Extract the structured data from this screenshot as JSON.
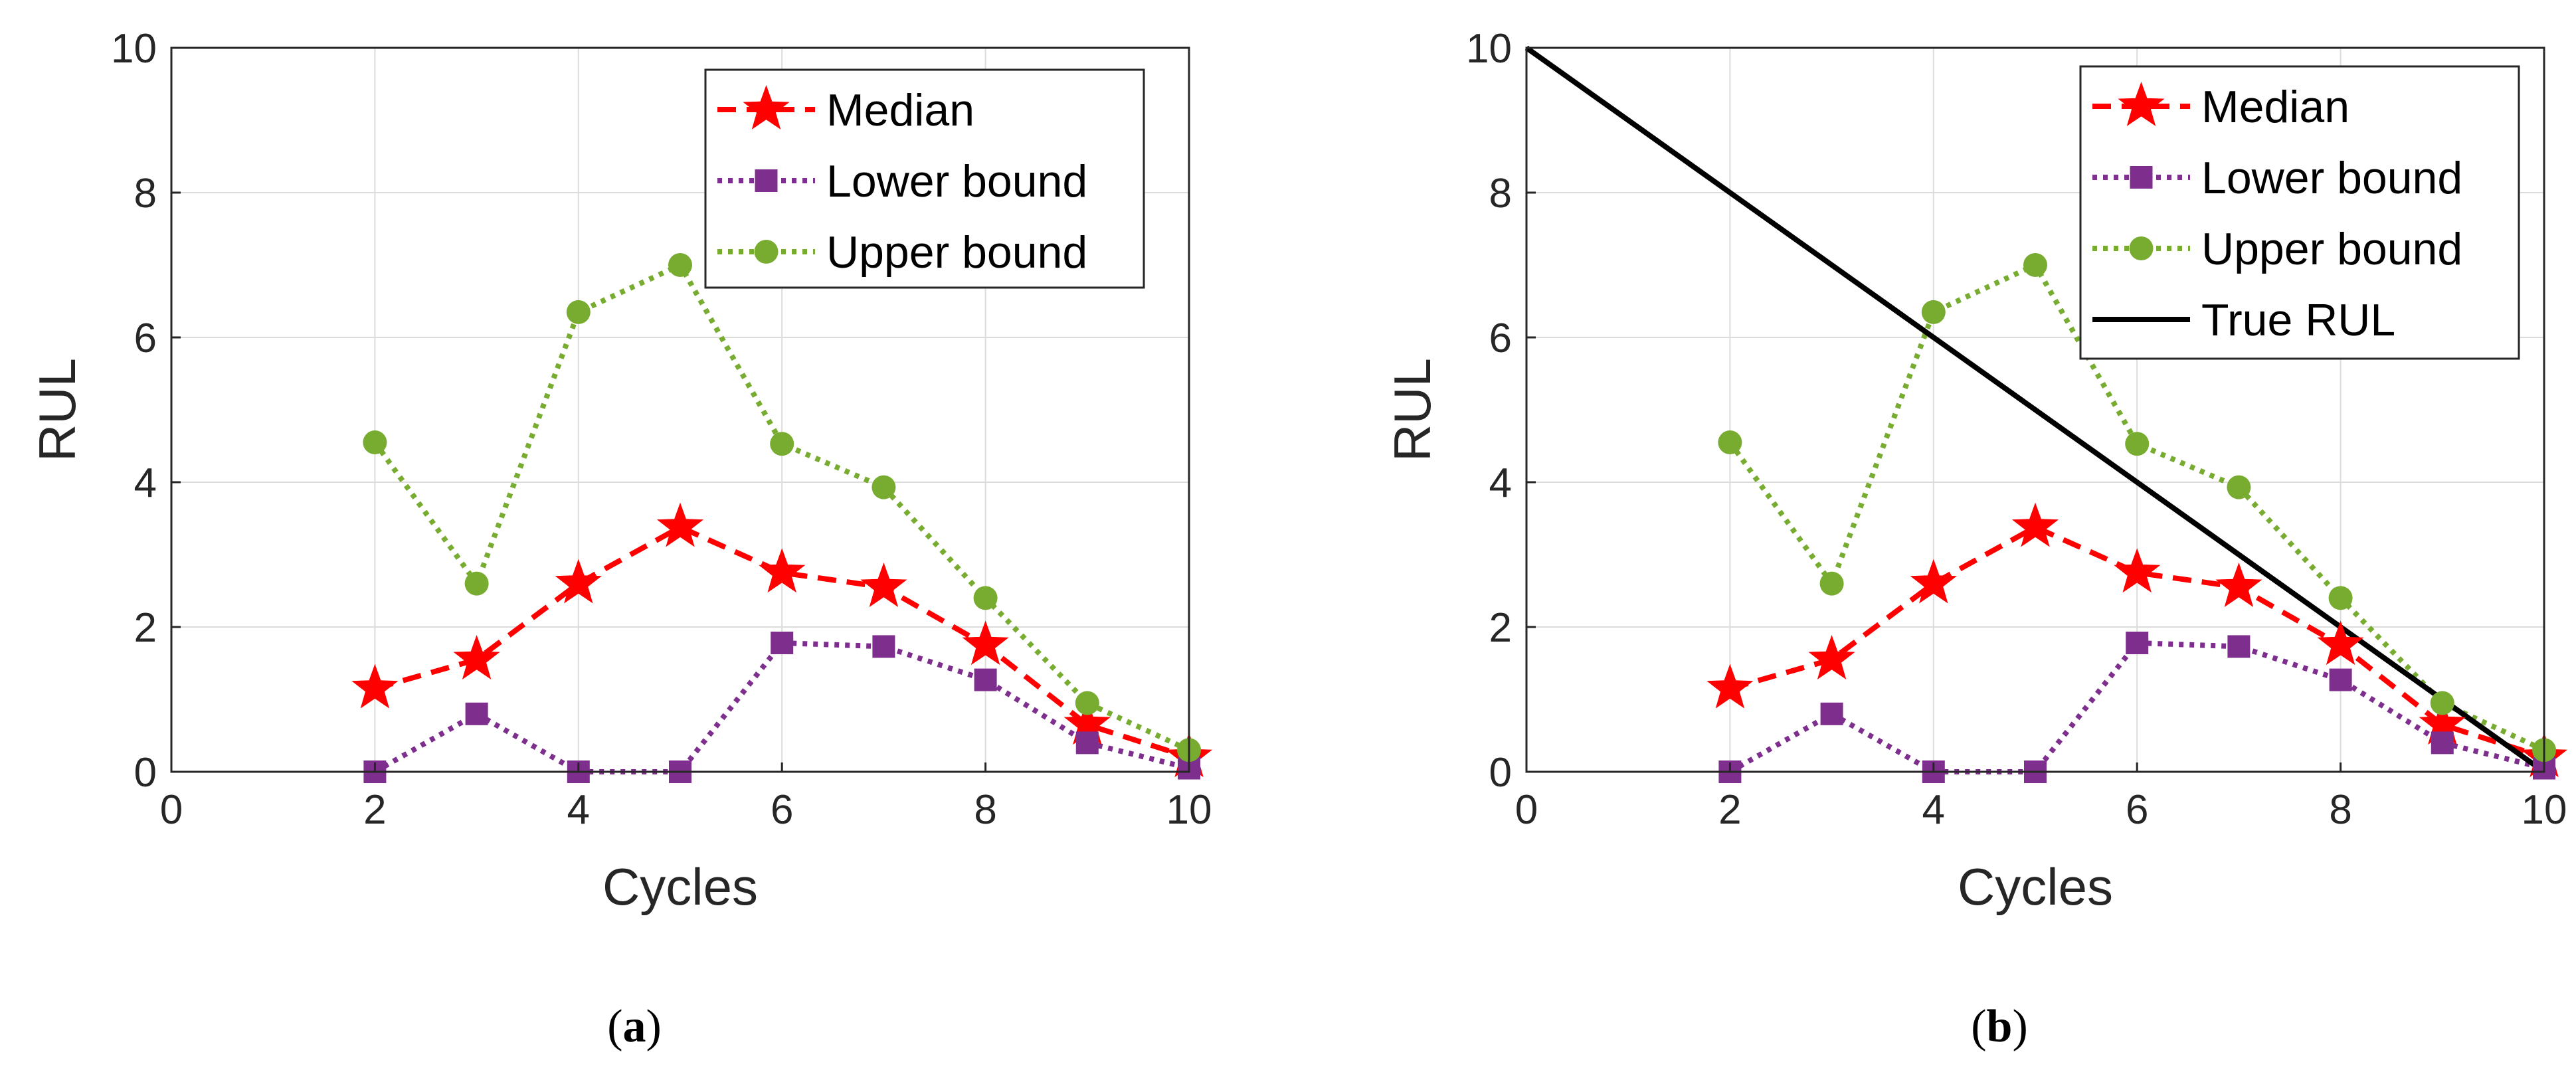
{
  "figure": {
    "panels": [
      {
        "caption_open": "(",
        "caption_letter": "a",
        "caption_close": ")"
      },
      {
        "caption_open": "(",
        "caption_letter": "b",
        "caption_close": ")"
      }
    ]
  },
  "colors": {
    "median": "#ff0000",
    "lower": "#7e2f8e",
    "upper": "#77ac30",
    "true_rul": "#000000",
    "grid": "#dcdcdc",
    "axis": "#262626"
  },
  "chart_data": [
    {
      "type": "line",
      "title": "",
      "xlabel": "Cycles",
      "ylabel": "RUL",
      "xlim": [
        0,
        10
      ],
      "ylim": [
        0,
        10
      ],
      "xticks": [
        0,
        2,
        4,
        6,
        8,
        10
      ],
      "yticks": [
        0,
        2,
        4,
        6,
        8,
        10
      ],
      "grid": true,
      "legend_position": "top-right",
      "series": [
        {
          "name": "Median",
          "color": "#ff0000",
          "marker": "star",
          "linestyle": "dashed",
          "x": [
            2,
            3,
            4,
            5,
            6,
            7,
            8,
            9,
            10
          ],
          "values": [
            1.15,
            1.55,
            2.6,
            3.38,
            2.75,
            2.55,
            1.75,
            0.65,
            0.2
          ]
        },
        {
          "name": "Lower bound",
          "color": "#7e2f8e",
          "marker": "square",
          "linestyle": "dotted",
          "x": [
            2,
            3,
            4,
            5,
            6,
            7,
            8,
            9,
            10
          ],
          "values": [
            0.0,
            0.8,
            0.0,
            0.0,
            1.78,
            1.73,
            1.27,
            0.4,
            0.05
          ]
        },
        {
          "name": "Upper bound",
          "color": "#77ac30",
          "marker": "circle",
          "linestyle": "dotted",
          "x": [
            2,
            3,
            4,
            5,
            6,
            7,
            8,
            9,
            10
          ],
          "values": [
            4.55,
            2.6,
            6.35,
            7.0,
            4.53,
            3.93,
            2.4,
            0.95,
            0.3
          ]
        }
      ]
    },
    {
      "type": "line",
      "title": "",
      "xlabel": "Cycles",
      "ylabel": "RUL",
      "xlim": [
        0,
        10
      ],
      "ylim": [
        0,
        10
      ],
      "xticks": [
        0,
        2,
        4,
        6,
        8,
        10
      ],
      "yticks": [
        0,
        2,
        4,
        6,
        8,
        10
      ],
      "grid": true,
      "legend_position": "top-right",
      "series": [
        {
          "name": "Median",
          "color": "#ff0000",
          "marker": "star",
          "linestyle": "dashed",
          "x": [
            2,
            3,
            4,
            5,
            6,
            7,
            8,
            9,
            10
          ],
          "values": [
            1.15,
            1.55,
            2.6,
            3.38,
            2.75,
            2.55,
            1.75,
            0.65,
            0.2
          ]
        },
        {
          "name": "Lower bound",
          "color": "#7e2f8e",
          "marker": "square",
          "linestyle": "dotted",
          "x": [
            2,
            3,
            4,
            5,
            6,
            7,
            8,
            9,
            10
          ],
          "values": [
            0.0,
            0.8,
            0.0,
            0.0,
            1.78,
            1.73,
            1.27,
            0.4,
            0.05
          ]
        },
        {
          "name": "Upper bound",
          "color": "#77ac30",
          "marker": "circle",
          "linestyle": "dotted",
          "x": [
            2,
            3,
            4,
            5,
            6,
            7,
            8,
            9,
            10
          ],
          "values": [
            4.55,
            2.6,
            6.35,
            7.0,
            4.53,
            3.93,
            2.4,
            0.95,
            0.3
          ]
        },
        {
          "name": "True RUL",
          "color": "#000000",
          "marker": "none",
          "linestyle": "solid",
          "x": [
            0,
            10
          ],
          "values": [
            10,
            0
          ]
        }
      ]
    }
  ]
}
